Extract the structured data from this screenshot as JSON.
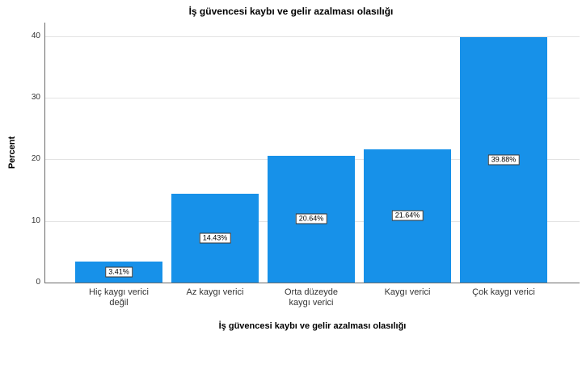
{
  "chart_data": {
    "type": "bar",
    "title": "İş güvencesi kaybı ve gelir azalması olasılığı",
    "xlabel": "İş güvencesi kaybı ve gelir azalması olasılığı",
    "ylabel": "Percent",
    "categories": [
      "Hiç kaygı verici\ndeğil",
      "Az kaygı verici",
      "Orta düzeyde\nkaygı verici",
      "Kaygı verici",
      "Çok kaygı verici"
    ],
    "values": [
      3.41,
      14.43,
      20.64,
      21.64,
      39.88
    ],
    "value_labels": [
      "3.41%",
      "14.43%",
      "20.64%",
      "21.64%",
      "39.88%"
    ],
    "yticks": [
      0,
      10,
      20,
      30,
      40
    ],
    "ylim": [
      0,
      42.2
    ],
    "grid": "horizontal gridlines at y ticks",
    "legend": "none",
    "colors": {
      "bar": "#1791e9",
      "gridline": "#e3e3e3",
      "axis": "#6b6b6b",
      "value_label_bg": "#ffffff",
      "value_label_border": "#333333",
      "text": "#000000",
      "tick_text": "#333333"
    }
  }
}
